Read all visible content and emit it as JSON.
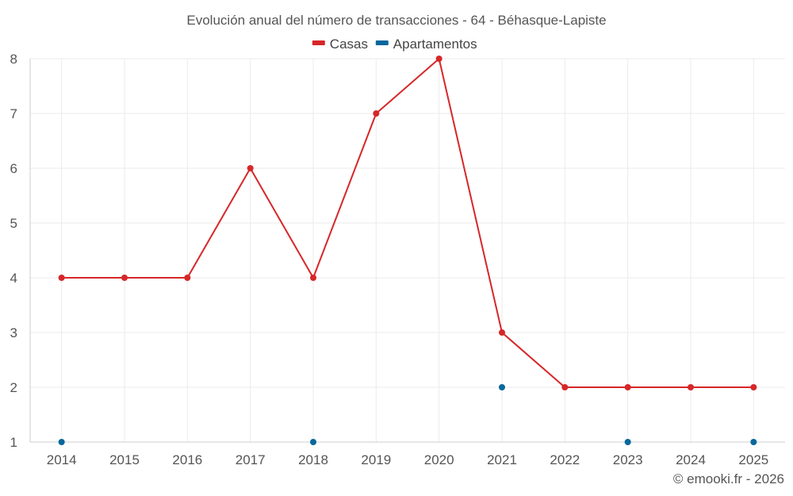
{
  "chart_data": {
    "type": "line",
    "title": "Evolución anual del número de transacciones - 64 - Béhasque-Lapiste",
    "categories": [
      "2014",
      "2015",
      "2016",
      "2017",
      "2018",
      "2019",
      "2020",
      "2021",
      "2022",
      "2023",
      "2024",
      "2025"
    ],
    "series": [
      {
        "name": "Casas",
        "color": "#d62728",
        "values": [
          4,
          4,
          4,
          6,
          4,
          7,
          8,
          3,
          2,
          2,
          2,
          2
        ],
        "line": true
      },
      {
        "name": "Apartamentos",
        "color": "#08679c",
        "values": [
          1,
          null,
          null,
          null,
          1,
          null,
          null,
          2,
          null,
          1,
          null,
          1
        ],
        "line": false
      }
    ],
    "ylim": [
      1,
      8
    ],
    "yticks": [
      1,
      2,
      3,
      4,
      5,
      6,
      7,
      8
    ],
    "grid": true,
    "legend": "top-center",
    "xlabel": "",
    "ylabel": ""
  },
  "credit": "© emooki.fr - 2026"
}
